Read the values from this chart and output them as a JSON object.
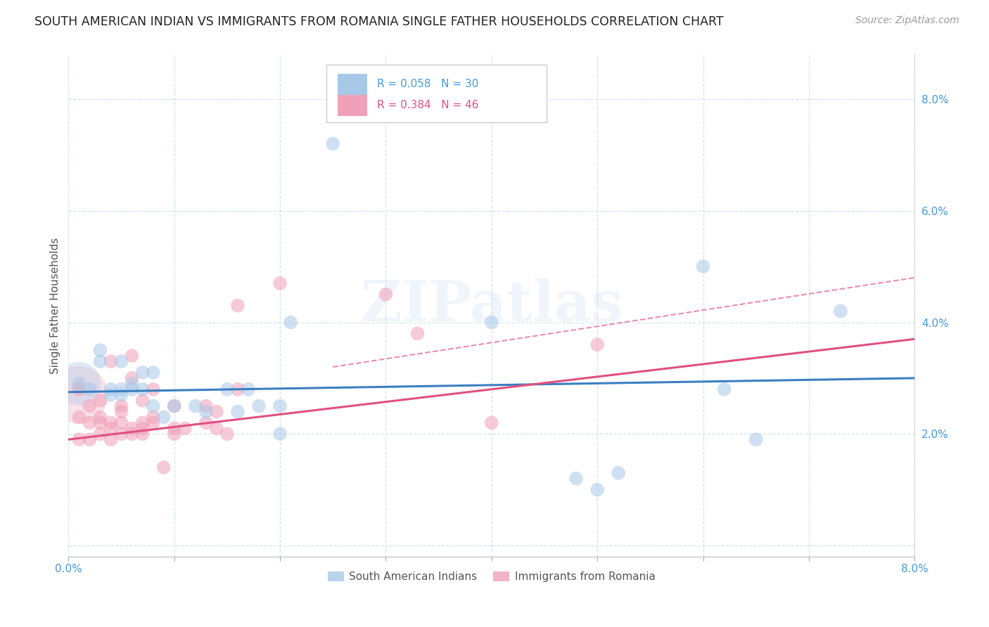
{
  "title": "SOUTH AMERICAN INDIAN VS IMMIGRANTS FROM ROMANIA SINGLE FATHER HOUSEHOLDS CORRELATION CHART",
  "source": "Source: ZipAtlas.com",
  "ylabel": "Single Father Households",
  "xlim": [
    0.0,
    0.08
  ],
  "ylim": [
    -0.002,
    0.088
  ],
  "yticks": [
    0.0,
    0.02,
    0.04,
    0.06,
    0.08
  ],
  "xticks": [
    0.0,
    0.01,
    0.02,
    0.03,
    0.04,
    0.05,
    0.06,
    0.07,
    0.08
  ],
  "xtick_labels_show": [
    "0.0%",
    "",
    "",
    "",
    "",
    "",
    "",
    "",
    "8.0%"
  ],
  "ytick_labels": [
    "",
    "2.0%",
    "4.0%",
    "6.0%",
    "8.0%"
  ],
  "series1_color": "#a8c8e8",
  "series2_color": "#f0a0b8",
  "line1_color": "#3a7fc1",
  "line2_color": "#e05080",
  "watermark": "ZIPatlas",
  "blue_scatter": [
    [
      0.001,
      0.029
    ],
    [
      0.002,
      0.028
    ],
    [
      0.003,
      0.033
    ],
    [
      0.003,
      0.035
    ],
    [
      0.004,
      0.028
    ],
    [
      0.004,
      0.027
    ],
    [
      0.005,
      0.027
    ],
    [
      0.005,
      0.028
    ],
    [
      0.005,
      0.033
    ],
    [
      0.006,
      0.029
    ],
    [
      0.006,
      0.028
    ],
    [
      0.007,
      0.028
    ],
    [
      0.007,
      0.031
    ],
    [
      0.008,
      0.031
    ],
    [
      0.008,
      0.025
    ],
    [
      0.009,
      0.023
    ],
    [
      0.01,
      0.025
    ],
    [
      0.012,
      0.025
    ],
    [
      0.013,
      0.024
    ],
    [
      0.015,
      0.028
    ],
    [
      0.016,
      0.024
    ],
    [
      0.017,
      0.028
    ],
    [
      0.018,
      0.025
    ],
    [
      0.02,
      0.025
    ],
    [
      0.02,
      0.02
    ],
    [
      0.021,
      0.04
    ],
    [
      0.025,
      0.072
    ],
    [
      0.04,
      0.04
    ],
    [
      0.062,
      0.028
    ],
    [
      0.065,
      0.019
    ]
  ],
  "blue_scatter_small": [
    [
      0.048,
      0.012
    ],
    [
      0.05,
      0.01
    ],
    [
      0.052,
      0.013
    ],
    [
      0.06,
      0.05
    ],
    [
      0.073,
      0.042
    ]
  ],
  "pink_scatter": [
    [
      0.001,
      0.019
    ],
    [
      0.001,
      0.023
    ],
    [
      0.001,
      0.028
    ],
    [
      0.002,
      0.019
    ],
    [
      0.002,
      0.022
    ],
    [
      0.002,
      0.025
    ],
    [
      0.003,
      0.02
    ],
    [
      0.003,
      0.022
    ],
    [
      0.003,
      0.023
    ],
    [
      0.003,
      0.026
    ],
    [
      0.004,
      0.019
    ],
    [
      0.004,
      0.021
    ],
    [
      0.004,
      0.022
    ],
    [
      0.004,
      0.033
    ],
    [
      0.005,
      0.02
    ],
    [
      0.005,
      0.022
    ],
    [
      0.005,
      0.024
    ],
    [
      0.005,
      0.025
    ],
    [
      0.006,
      0.02
    ],
    [
      0.006,
      0.021
    ],
    [
      0.006,
      0.03
    ],
    [
      0.006,
      0.034
    ],
    [
      0.007,
      0.02
    ],
    [
      0.007,
      0.021
    ],
    [
      0.007,
      0.022
    ],
    [
      0.007,
      0.026
    ],
    [
      0.008,
      0.022
    ],
    [
      0.008,
      0.023
    ],
    [
      0.008,
      0.028
    ],
    [
      0.009,
      0.014
    ],
    [
      0.01,
      0.02
    ],
    [
      0.01,
      0.021
    ],
    [
      0.01,
      0.025
    ],
    [
      0.011,
      0.021
    ],
    [
      0.013,
      0.022
    ],
    [
      0.013,
      0.025
    ],
    [
      0.014,
      0.021
    ],
    [
      0.014,
      0.024
    ],
    [
      0.015,
      0.02
    ],
    [
      0.016,
      0.028
    ],
    [
      0.016,
      0.043
    ],
    [
      0.02,
      0.047
    ],
    [
      0.03,
      0.045
    ],
    [
      0.033,
      0.038
    ],
    [
      0.04,
      0.022
    ],
    [
      0.05,
      0.036
    ]
  ],
  "blue_line": [
    0.0,
    0.08,
    0.0275,
    0.03
  ],
  "pink_line": [
    0.0,
    0.08,
    0.019,
    0.037
  ],
  "pink_dash": [
    0.025,
    0.08,
    0.032,
    0.048
  ],
  "bg_color": "#ffffff",
  "title_color": "#222222",
  "axis_color": "#4499dd",
  "grid_color": "#d0e4f0"
}
